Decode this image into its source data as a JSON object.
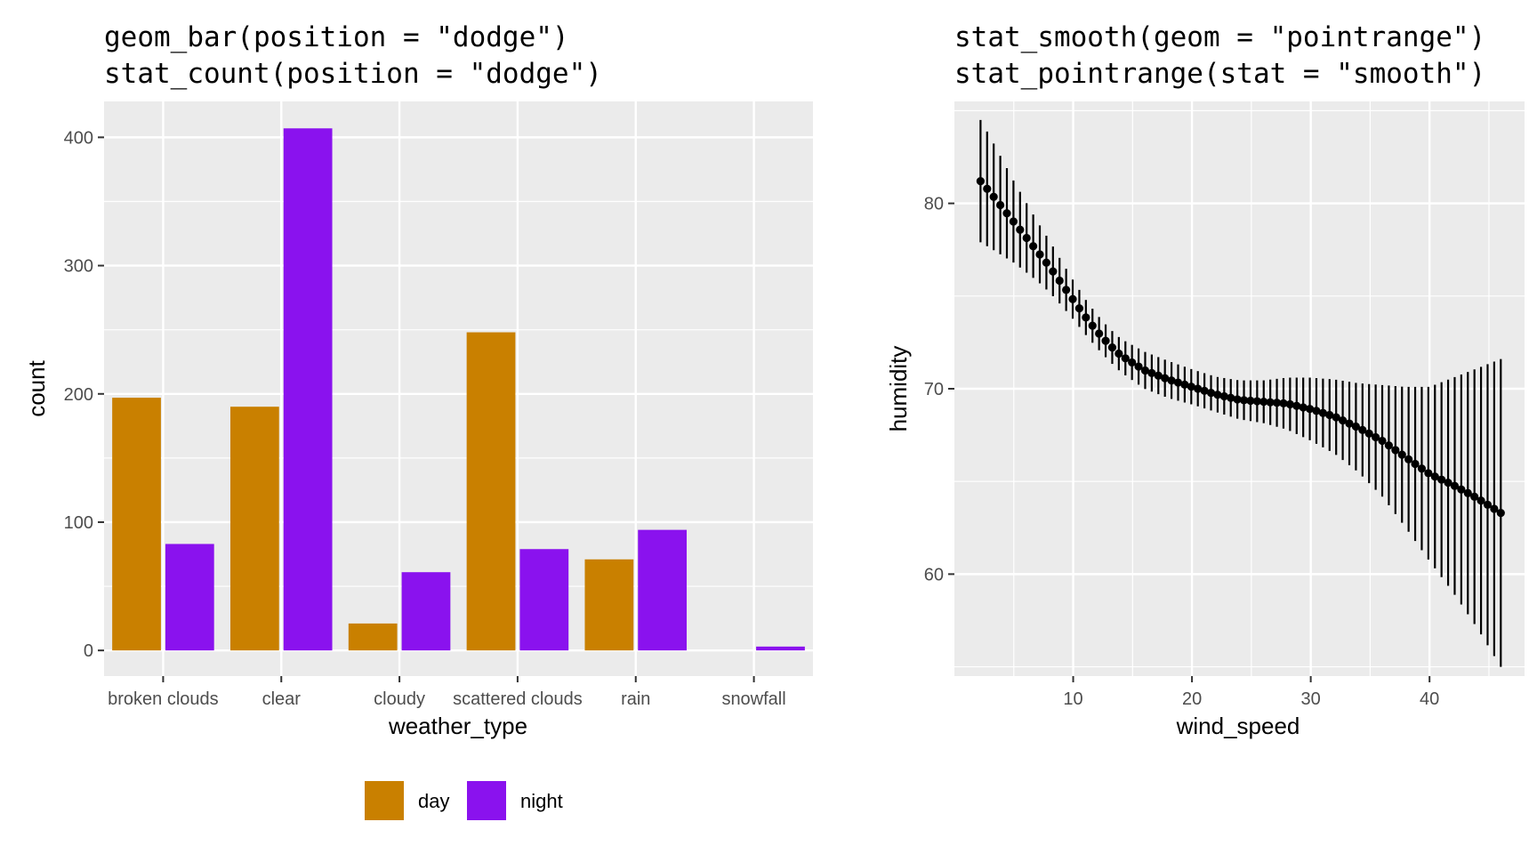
{
  "chart_data": [
    {
      "type": "bar",
      "title_lines": [
        "geom_bar(position = \"dodge\")",
        "stat_count(position = \"dodge\")"
      ],
      "xlabel": "weather_type",
      "ylabel": "count",
      "categories": [
        "broken clouds",
        "clear",
        "cloudy",
        "scattered clouds",
        "rain",
        "snowfall"
      ],
      "series": [
        {
          "name": "day",
          "color": "#C98000",
          "values": [
            197,
            190,
            21,
            248,
            71,
            0
          ]
        },
        {
          "name": "night",
          "color": "#8A12EE",
          "values": [
            83,
            407,
            61,
            79,
            94,
            3
          ]
        }
      ],
      "ylim": [
        -20,
        428
      ],
      "yticks": [
        0,
        100,
        200,
        300,
        400
      ],
      "ytick_labels": [
        "0",
        "100",
        "200",
        "300",
        "400"
      ],
      "grid": true,
      "legend_position": "bottom",
      "legend_labels": [
        "day",
        "night"
      ]
    },
    {
      "type": "scatter",
      "subtype": "pointrange",
      "title_lines": [
        "stat_smooth(geom = \"pointrange\")",
        "stat_pointrange(stat = \"smooth\")"
      ],
      "xlabel": "wind_speed",
      "ylabel": "humidity",
      "xlim": [
        0,
        48
      ],
      "ylim": [
        54.5,
        85.5
      ],
      "xticks": [
        10,
        20,
        30,
        40
      ],
      "xtick_labels": [
        "10",
        "20",
        "30",
        "40"
      ],
      "yticks": [
        60,
        70,
        80
      ],
      "ytick_labels": [
        "60",
        "70",
        "80"
      ],
      "grid": true,
      "x_start": 2.2,
      "x_end": 46.0,
      "n_points": 80,
      "curve_knots": {
        "x": [
          2.2,
          3,
          4,
          5,
          6,
          7,
          8,
          9,
          10,
          11,
          12,
          13,
          14,
          15,
          16,
          18,
          20,
          22,
          24,
          26,
          28,
          30,
          32,
          34,
          36,
          38,
          40,
          42,
          44,
          46
        ],
        "y": [
          81.2,
          80.6,
          79.8,
          79.0,
          78.2,
          77.4,
          76.6,
          75.7,
          74.8,
          73.9,
          73.1,
          72.4,
          71.8,
          71.4,
          71.0,
          70.5,
          70.1,
          69.7,
          69.4,
          69.3,
          69.2,
          68.9,
          68.5,
          67.9,
          67.2,
          66.3,
          65.4,
          64.8,
          64.1,
          63.3
        ],
        "half_width": [
          3.3,
          3.0,
          2.6,
          2.2,
          1.9,
          1.6,
          1.4,
          1.2,
          1.05,
          0.95,
          0.9,
          0.88,
          0.9,
          0.95,
          1.0,
          1.0,
          0.95,
          0.95,
          1.05,
          1.15,
          1.4,
          1.7,
          2.0,
          2.4,
          3.0,
          3.8,
          4.7,
          5.8,
          7.0,
          8.3
        ]
      }
    }
  ]
}
